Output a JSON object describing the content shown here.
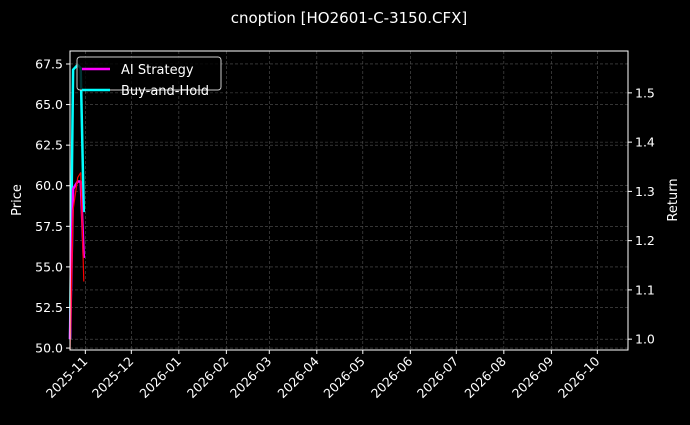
{
  "chart_data": {
    "type": "line",
    "title": "cnoption [HO2601-C-3150.CFX]",
    "ylabel": "Price",
    "y2label": "Return",
    "xlim": [
      "2025-10-22",
      "2026-10-21"
    ],
    "ylim": [
      49.88,
      68.3
    ],
    "y2lim": [
      0.978,
      1.585
    ],
    "x_ticks": [
      "2025-11",
      "2025-12",
      "2026-01",
      "2026-02",
      "2026-03",
      "2026-04",
      "2026-05",
      "2026-06",
      "2026-07",
      "2026-08",
      "2026-09",
      "2026-10"
    ],
    "y_ticks": [
      50.0,
      52.5,
      55.0,
      57.5,
      60.0,
      62.5,
      65.0,
      67.5
    ],
    "y2_ticks": [
      1.0,
      1.1,
      1.2,
      1.3,
      1.4,
      1.5
    ],
    "grid": true,
    "legend_position": "top-left",
    "series": [
      {
        "name": "",
        "axis": "left",
        "color": "#ff0000",
        "x": [
          "2025-10-22",
          "2025-10-24",
          "2025-10-27",
          "2025-10-29",
          "2025-10-31"
        ],
        "y": [
          49.9,
          58.5,
          60.5,
          60.8,
          54.1
        ]
      },
      {
        "name": "AI Strategy",
        "axis": "right",
        "color": "#ff00ff",
        "x": [
          "2025-10-22",
          "2025-10-24",
          "2025-10-27",
          "2025-10-29",
          "2025-10-31"
        ],
        "y": [
          1.0,
          1.305,
          1.32,
          1.32,
          1.165
        ]
      },
      {
        "name": "Buy-and-Hold",
        "axis": "right",
        "color": "#00ffff",
        "x": [
          "2025-10-22",
          "2025-10-24",
          "2025-10-27",
          "2025-10-29",
          "2025-10-31"
        ],
        "y": [
          1.0,
          1.547,
          1.557,
          1.55,
          1.258
        ]
      }
    ]
  }
}
